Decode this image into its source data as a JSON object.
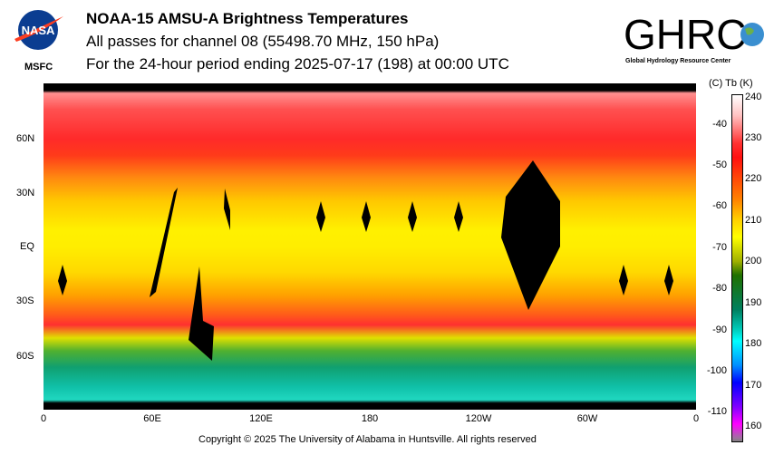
{
  "header": {
    "title": "NOAA-15 AMSU-A Brightness Temperatures",
    "subtitle": "All passes for channel 08 (55498.70 MHz, 150 hPa)",
    "period": "For the 24-hour period ending 2025-07-17 (198) at 00:00 UTC",
    "left_logo_text": "NASA",
    "left_logo_label": "MSFC",
    "right_logo_text": "GHRC",
    "right_logo_subtitle": "Global Hydrology Resource Center"
  },
  "map": {
    "lat_labels": [
      "60N",
      "30N",
      "EQ",
      "30S",
      "60S"
    ],
    "lon_labels": [
      "0",
      "60E",
      "120E",
      "180",
      "120W",
      "60W",
      "0"
    ]
  },
  "colorbar": {
    "header": "(C)  Tb  (K)",
    "kelvin_labels": [
      "240",
      "230",
      "220",
      "210",
      "200",
      "190",
      "180",
      "170",
      "160"
    ],
    "celsius_labels": [
      "-40",
      "-50",
      "-60",
      "-70",
      "-80",
      "-90",
      "-100",
      "-110"
    ],
    "range_k": [
      155.5,
      240
    ]
  },
  "footer": {
    "copyright": "Copyright © 2025 The University of Alabama in Huntsville.  All rights reserved"
  }
}
